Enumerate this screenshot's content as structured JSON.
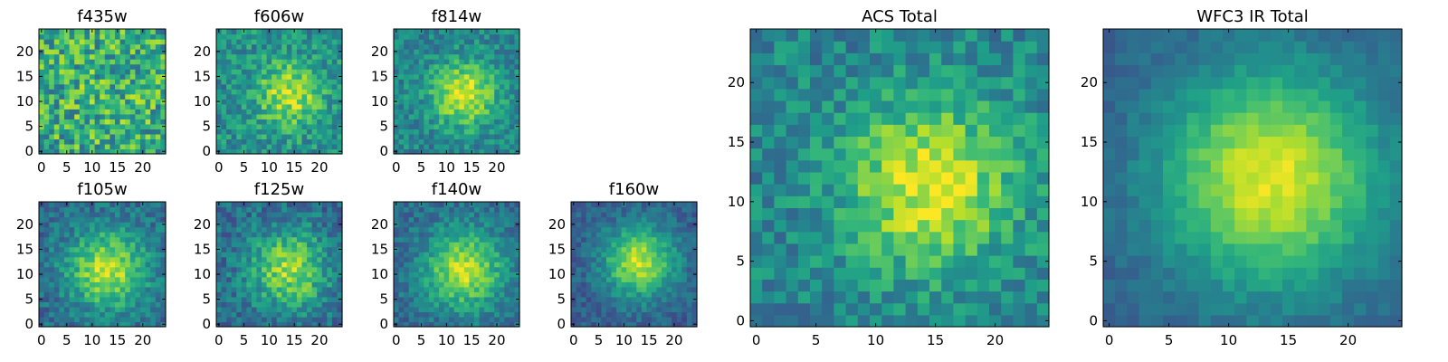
{
  "chart_data": [
    {
      "type": "heatmap",
      "title": "f435w",
      "xlim": [
        0,
        25
      ],
      "ylim": [
        0,
        25
      ],
      "xticks": [
        0,
        5,
        10,
        15,
        20
      ],
      "yticks": [
        0,
        5,
        10,
        15,
        20
      ],
      "colormap": "viridis",
      "peak": [
        13.5,
        11.5
      ],
      "spread": 14.0,
      "noise": 0.55,
      "base": 0.55,
      "amp": 0.1,
      "seed": 11
    },
    {
      "type": "heatmap",
      "title": "f606w",
      "xlim": [
        0,
        25
      ],
      "ylim": [
        0,
        25
      ],
      "xticks": [
        0,
        5,
        10,
        15,
        20
      ],
      "yticks": [
        0,
        5,
        10,
        15,
        20
      ],
      "colormap": "viridis",
      "peak": [
        14.0,
        11.5
      ],
      "spread": 4.5,
      "noise": 0.35,
      "base": 0.5,
      "amp": 0.4,
      "seed": 23
    },
    {
      "type": "heatmap",
      "title": "f814w",
      "xlim": [
        0,
        25
      ],
      "ylim": [
        0,
        25
      ],
      "xticks": [
        0,
        5,
        10,
        15,
        20
      ],
      "yticks": [
        0,
        5,
        10,
        15,
        20
      ],
      "colormap": "viridis",
      "peak": [
        13.5,
        11.5
      ],
      "spread": 4.5,
      "noise": 0.3,
      "base": 0.45,
      "amp": 0.5,
      "seed": 37
    },
    {
      "type": "heatmap",
      "title": "f105w",
      "xlim": [
        0,
        25
      ],
      "ylim": [
        0,
        25
      ],
      "xticks": [
        0,
        5,
        10,
        15,
        20
      ],
      "yticks": [
        0,
        5,
        10,
        15,
        20
      ],
      "colormap": "viridis",
      "peak": [
        13.0,
        11.0
      ],
      "spread": 5.5,
      "noise": 0.28,
      "base": 0.35,
      "amp": 0.55,
      "seed": 41
    },
    {
      "type": "heatmap",
      "title": "f125w",
      "xlim": [
        0,
        25
      ],
      "ylim": [
        0,
        25
      ],
      "xticks": [
        0,
        5,
        10,
        15,
        20
      ],
      "yticks": [
        0,
        5,
        10,
        15,
        20
      ],
      "colormap": "viridis",
      "peak": [
        14.0,
        11.0
      ],
      "spread": 5.5,
      "noise": 0.32,
      "base": 0.35,
      "amp": 0.5,
      "seed": 53
    },
    {
      "type": "heatmap",
      "title": "f140w",
      "xlim": [
        0,
        25
      ],
      "ylim": [
        0,
        25
      ],
      "xticks": [
        0,
        5,
        10,
        15,
        20
      ],
      "yticks": [
        0,
        5,
        10,
        15,
        20
      ],
      "colormap": "viridis",
      "peak": [
        13.5,
        11.0
      ],
      "spread": 5.5,
      "noise": 0.25,
      "base": 0.35,
      "amp": 0.55,
      "seed": 67
    },
    {
      "type": "heatmap",
      "title": "f160w",
      "xlim": [
        0,
        25
      ],
      "ylim": [
        0,
        25
      ],
      "xticks": [
        0,
        5,
        10,
        15,
        20
      ],
      "yticks": [
        0,
        5,
        10,
        15,
        20
      ],
      "colormap": "viridis",
      "peak": [
        13.0,
        12.5
      ],
      "spread": 5.0,
      "noise": 0.22,
      "base": 0.3,
      "amp": 0.6,
      "seed": 79
    },
    {
      "type": "heatmap",
      "title": "ACS Total",
      "xlim": [
        0,
        25
      ],
      "ylim": [
        0,
        25
      ],
      "xticks": [
        0,
        5,
        10,
        15,
        20
      ],
      "yticks": [
        0,
        5,
        10,
        15,
        20
      ],
      "colormap": "viridis",
      "peak": [
        14.5,
        11.5
      ],
      "spread": 5.0,
      "noise": 0.3,
      "base": 0.45,
      "amp": 0.5,
      "seed": 97
    },
    {
      "type": "heatmap",
      "title": "WFC3 IR Total",
      "xlim": [
        0,
        25
      ],
      "ylim": [
        0,
        25
      ],
      "xticks": [
        0,
        5,
        10,
        15,
        20
      ],
      "yticks": [
        0,
        5,
        10,
        15,
        20
      ],
      "colormap": "viridis",
      "peak": [
        13.5,
        12.0
      ],
      "spread": 6.5,
      "noise": 0.12,
      "base": 0.3,
      "amp": 0.65,
      "seed": 113
    }
  ]
}
